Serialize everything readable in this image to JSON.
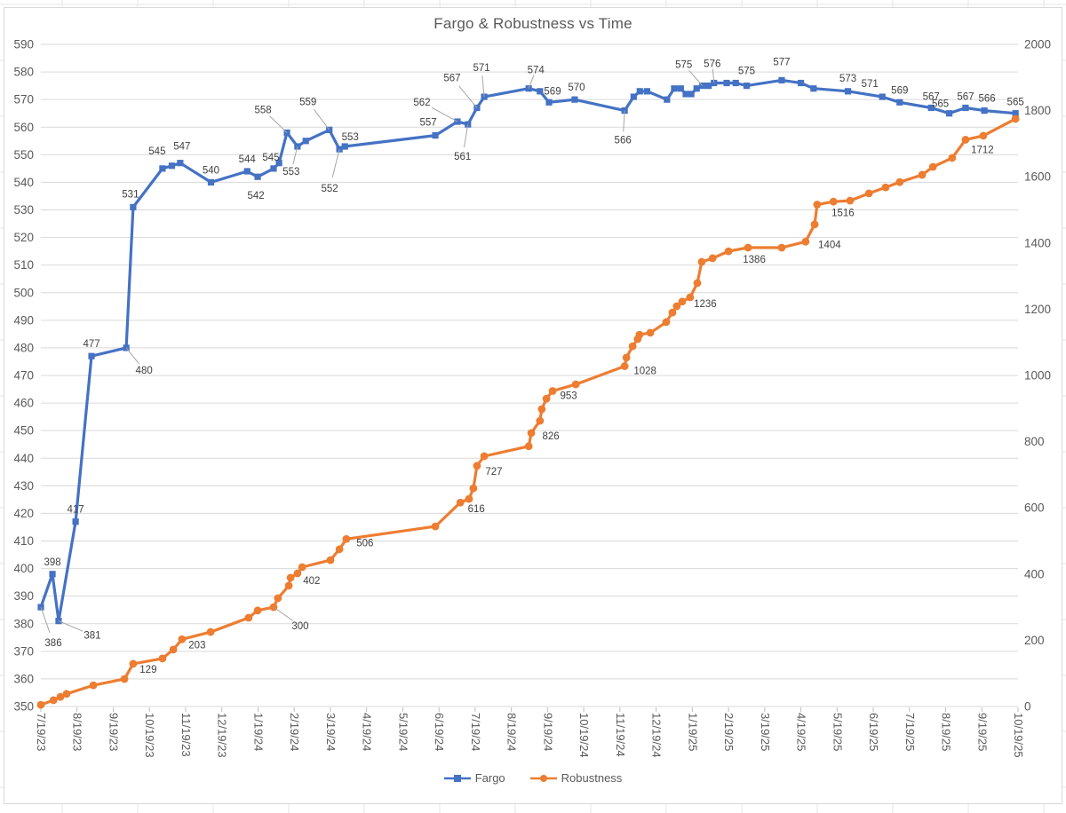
{
  "title": "Fargo & Robustness vs Time",
  "legend": [
    {
      "name": "Fargo",
      "color": "#4472C4",
      "marker": "square"
    },
    {
      "name": "Robustness",
      "color": "#ED7D31",
      "marker": "circle"
    }
  ],
  "colors": {
    "fargo": "#4472C4",
    "robustness": "#ED7D31",
    "gridline": "#D9D9D9",
    "axis_text": "#595959",
    "data_label_text": "#404040",
    "leader_line": "#A6A6A6",
    "sheet_grid": "#E4E4E4",
    "chart_border": "#D9D9D9"
  },
  "axes": {
    "x": {
      "tick_labels": [
        "7/19/23",
        "8/19/23",
        "9/19/23",
        "10/19/23",
        "11/19/23",
        "12/19/23",
        "1/19/24",
        "2/19/24",
        "3/19/24",
        "4/19/24",
        "5/19/24",
        "6/19/24",
        "7/19/24",
        "8/19/24",
        "9/19/24",
        "10/19/24",
        "11/19/24",
        "12/19/24",
        "1/19/25",
        "2/19/25",
        "3/19/25",
        "4/19/25",
        "5/19/25",
        "6/19/25",
        "7/19/25",
        "8/19/25",
        "9/19/25",
        "10/19/25"
      ]
    },
    "y_left": {
      "min": 350,
      "max": 590,
      "step": 10
    },
    "y_right": {
      "min": 0,
      "max": 2000,
      "step": 200
    }
  },
  "chart_data": {
    "type": "line",
    "title": "Fargo & Robustness vs Time",
    "x_unit": "months since 7/19/23 (fractional = intra-month dates)",
    "legend_position": "bottom",
    "grid": true,
    "series": [
      {
        "name": "Fargo",
        "axis": "left",
        "color": "#4472C4",
        "marker": "square",
        "points": [
          [
            0.0,
            386,
            "386",
            14,
            40,
            true
          ],
          [
            0.32,
            398,
            "398",
            0,
            -14,
            false
          ],
          [
            0.49,
            381,
            "381",
            38,
            16,
            true
          ],
          [
            0.96,
            417,
            "417",
            0,
            -14,
            false
          ],
          [
            1.4,
            477,
            "477",
            0,
            -14,
            false
          ],
          [
            2.36,
            480,
            "480",
            20,
            25,
            true
          ],
          [
            2.55,
            531,
            "531",
            -3,
            -15,
            false
          ],
          [
            3.36,
            545,
            "545",
            -6,
            -20,
            false
          ],
          [
            3.62,
            546
          ],
          [
            3.85,
            547,
            "547",
            2,
            -19,
            false
          ],
          [
            4.7,
            540,
            "540",
            0,
            -14,
            false
          ],
          [
            5.7,
            544,
            "544",
            0,
            -14,
            false
          ],
          [
            5.99,
            542,
            "542",
            -2,
            21,
            false
          ],
          [
            6.43,
            545,
            "545",
            -3,
            -13,
            false
          ],
          [
            6.58,
            547
          ],
          [
            6.8,
            558,
            "558",
            -27,
            -26,
            true
          ],
          [
            7.09,
            553,
            "553",
            -7,
            28,
            true
          ],
          [
            7.32,
            555
          ],
          [
            7.97,
            559,
            "559",
            -24,
            -32,
            true
          ],
          [
            8.25,
            552,
            "552",
            -11,
            44,
            true
          ],
          [
            8.4,
            553,
            "553",
            6,
            -11,
            false
          ],
          [
            10.9,
            557,
            "557",
            -8,
            -15,
            false
          ],
          [
            11.51,
            562,
            "562",
            -40,
            -22,
            true
          ],
          [
            11.8,
            561,
            "561",
            -6,
            36,
            true
          ],
          [
            12.05,
            567,
            "567",
            -28,
            -34,
            true
          ],
          [
            12.25,
            571,
            "571",
            -3,
            -33,
            true
          ],
          [
            13.48,
            574,
            "574",
            8,
            -21,
            true
          ],
          [
            13.79,
            573
          ],
          [
            14.04,
            569,
            "569",
            4,
            -13,
            false
          ],
          [
            14.75,
            570,
            "570",
            2,
            -14,
            false
          ],
          [
            16.13,
            566,
            "566",
            -2,
            33,
            true
          ],
          [
            16.38,
            571
          ],
          [
            16.55,
            573
          ],
          [
            16.75,
            573
          ],
          [
            17.3,
            570
          ],
          [
            17.5,
            574
          ],
          [
            17.68,
            574
          ],
          [
            17.82,
            572
          ],
          [
            17.97,
            572
          ],
          [
            18.12,
            574
          ],
          [
            18.28,
            575,
            "575",
            -21,
            -24,
            true
          ],
          [
            18.45,
            575
          ],
          [
            18.6,
            576,
            "576",
            -2,
            -22,
            true
          ],
          [
            18.95,
            576
          ],
          [
            19.2,
            576
          ],
          [
            19.5,
            575,
            "575",
            0,
            -17,
            false
          ],
          [
            20.47,
            577,
            "577",
            0,
            -21,
            false
          ],
          [
            21.0,
            576
          ],
          [
            21.35,
            574
          ],
          [
            22.3,
            573,
            "573",
            0,
            -15,
            false
          ],
          [
            23.25,
            571,
            "571",
            -14,
            -15,
            false
          ],
          [
            23.73,
            569,
            "569",
            0,
            -14,
            false
          ],
          [
            24.6,
            567,
            "567",
            0,
            -13,
            false
          ],
          [
            25.1,
            565,
            "565",
            -10,
            -11,
            false
          ],
          [
            25.55,
            567,
            "567",
            0,
            -13,
            false
          ],
          [
            26.07,
            566,
            "566",
            3,
            -14,
            false
          ],
          [
            26.93,
            565,
            "565",
            0,
            -13,
            false
          ]
        ]
      },
      {
        "name": "Robustness",
        "axis": "right",
        "color": "#ED7D31",
        "marker": "circle",
        "points": [
          [
            0.0,
            5
          ],
          [
            0.35,
            19
          ],
          [
            0.54,
            29
          ],
          [
            0.71,
            38
          ],
          [
            1.45,
            64
          ],
          [
            2.31,
            83
          ],
          [
            2.55,
            129,
            "129",
            17,
            6,
            false
          ],
          [
            3.36,
            145
          ],
          [
            3.66,
            172
          ],
          [
            3.9,
            203,
            "203",
            17,
            6,
            false
          ],
          [
            4.69,
            225
          ],
          [
            5.74,
            268
          ],
          [
            5.99,
            290
          ],
          [
            6.43,
            300,
            "300",
            30,
            21,
            true
          ],
          [
            6.55,
            327
          ],
          [
            6.85,
            365
          ],
          [
            6.9,
            389
          ],
          [
            7.09,
            402,
            "402",
            16,
            8,
            false
          ],
          [
            7.22,
            421
          ],
          [
            8.0,
            442
          ],
          [
            8.25,
            475
          ],
          [
            8.44,
            506,
            "506",
            21,
            4,
            false
          ],
          [
            10.9,
            544
          ],
          [
            11.59,
            616,
            "616",
            18,
            7,
            false
          ],
          [
            11.83,
            627
          ],
          [
            11.95,
            659
          ],
          [
            12.05,
            727,
            "727",
            19,
            6,
            false
          ],
          [
            12.25,
            756
          ],
          [
            13.48,
            786
          ],
          [
            13.55,
            826,
            "826",
            22,
            3,
            false
          ],
          [
            13.79,
            863
          ],
          [
            13.84,
            898
          ],
          [
            13.97,
            930
          ],
          [
            14.14,
            953,
            "953",
            18,
            5,
            false
          ],
          [
            14.78,
            973
          ],
          [
            16.13,
            1028,
            "1028",
            23,
            5,
            false
          ],
          [
            16.18,
            1054
          ],
          [
            16.35,
            1088
          ],
          [
            16.49,
            1110
          ],
          [
            16.54,
            1123
          ],
          [
            16.84,
            1129
          ],
          [
            17.28,
            1161
          ],
          [
            17.45,
            1190
          ],
          [
            17.57,
            1209
          ],
          [
            17.72,
            1223
          ],
          [
            17.94,
            1236,
            "1236",
            17,
            7,
            false
          ],
          [
            18.14,
            1279
          ],
          [
            18.26,
            1343
          ],
          [
            18.56,
            1354
          ],
          [
            19.0,
            1375
          ],
          [
            19.54,
            1386,
            "1386",
            7,
            13,
            false
          ],
          [
            20.47,
            1386
          ],
          [
            21.13,
            1404,
            "1404",
            27,
            3,
            false
          ],
          [
            21.38,
            1456
          ],
          [
            21.45,
            1516,
            "1516",
            29,
            9,
            false
          ],
          [
            21.9,
            1525
          ],
          [
            22.36,
            1528
          ],
          [
            22.88,
            1550
          ],
          [
            23.34,
            1568
          ],
          [
            23.73,
            1584
          ],
          [
            24.35,
            1606
          ],
          [
            24.65,
            1630
          ],
          [
            25.18,
            1657
          ],
          [
            25.55,
            1712,
            "1712",
            19,
            11,
            false
          ],
          [
            26.04,
            1724
          ],
          [
            26.93,
            1775
          ]
        ]
      }
    ]
  }
}
